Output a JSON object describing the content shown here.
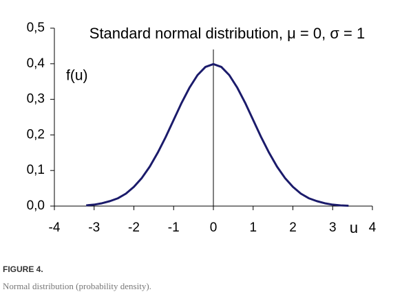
{
  "chart_data": {
    "type": "line",
    "title": "Standard normal distribution, μ = 0, σ = 1",
    "y_label": "f(u)",
    "x_label": "u",
    "x": [
      -3.2,
      -3.0,
      -2.8,
      -2.6,
      -2.4,
      -2.2,
      -2.0,
      -1.8,
      -1.6,
      -1.4,
      -1.2,
      -1.0,
      -0.8,
      -0.6,
      -0.4,
      -0.2,
      0,
      0.2,
      0.4,
      0.6,
      0.8,
      1.0,
      1.2,
      1.4,
      1.6,
      1.8,
      2.0,
      2.2,
      2.4,
      2.6,
      2.8,
      3.0,
      3.2,
      3.4
    ],
    "values": [
      0.002,
      0.004,
      0.008,
      0.014,
      0.022,
      0.035,
      0.054,
      0.079,
      0.111,
      0.15,
      0.194,
      0.242,
      0.29,
      0.333,
      0.368,
      0.391,
      0.399,
      0.391,
      0.368,
      0.333,
      0.29,
      0.242,
      0.194,
      0.15,
      0.111,
      0.079,
      0.054,
      0.035,
      0.022,
      0.014,
      0.008,
      0.004,
      0.002,
      0.001
    ],
    "color": "#1b1b6b",
    "vline": 0,
    "xlim": [
      -4,
      4
    ],
    "xticks": [
      -4,
      -3,
      -2,
      -1,
      0,
      1,
      2,
      3,
      4
    ],
    "ylim": [
      0,
      0.5
    ],
    "yticks": [
      {
        "value": 0,
        "label": "0,0"
      },
      {
        "value": 0.1,
        "label": "0,1"
      },
      {
        "value": 0.2,
        "label": "0,2"
      },
      {
        "value": 0.3,
        "label": "0,3"
      },
      {
        "value": 0.4,
        "label": "0,4"
      },
      {
        "value": 0.5,
        "label": "0,5"
      }
    ]
  },
  "caption": {
    "label": "FIGURE 4.",
    "text": "Normal distribution (probability density)."
  }
}
